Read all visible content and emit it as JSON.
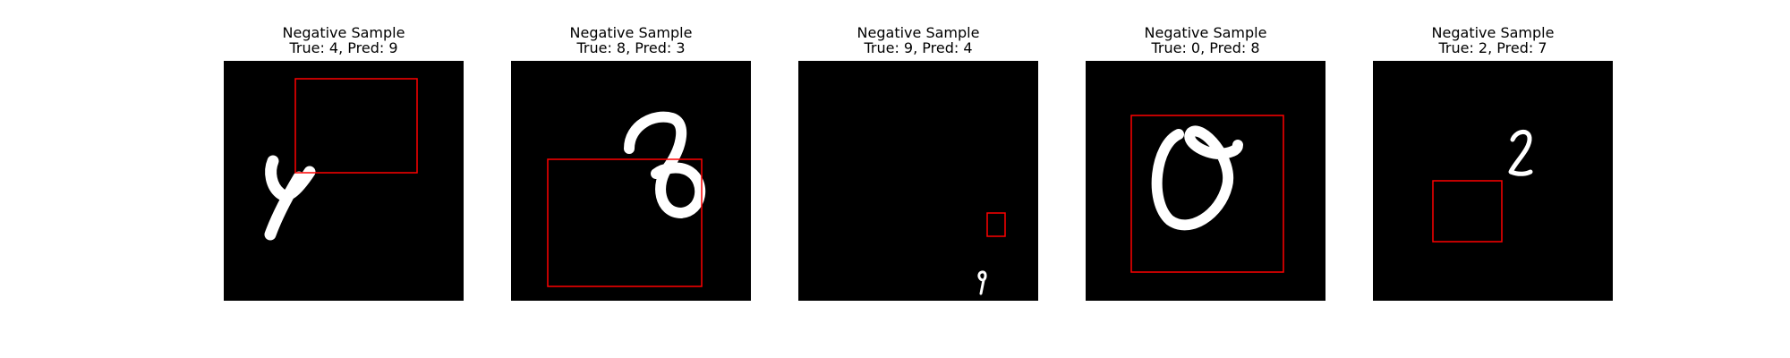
{
  "figure": {
    "panels": [
      {
        "title": "Negative Sample",
        "subtitle": "True: 4, Pred: 9",
        "true_label": 4,
        "pred_label": 9,
        "box_color": "#ff0000"
      },
      {
        "title": "Negative Sample",
        "subtitle": "True: 8, Pred: 3",
        "true_label": 8,
        "pred_label": 3,
        "box_color": "#ff0000"
      },
      {
        "title": "Negative Sample",
        "subtitle": "True: 9, Pred: 4",
        "true_label": 9,
        "pred_label": 4,
        "box_color": "#ff0000"
      },
      {
        "title": "Negative Sample",
        "subtitle": "True: 0, Pred: 8",
        "true_label": 0,
        "pred_label": 8,
        "box_color": "#ff0000"
      },
      {
        "title": "Negative Sample",
        "subtitle": "True: 2, Pred: 7",
        "true_label": 2,
        "pred_label": 7,
        "box_color": "#ff0000"
      }
    ]
  }
}
